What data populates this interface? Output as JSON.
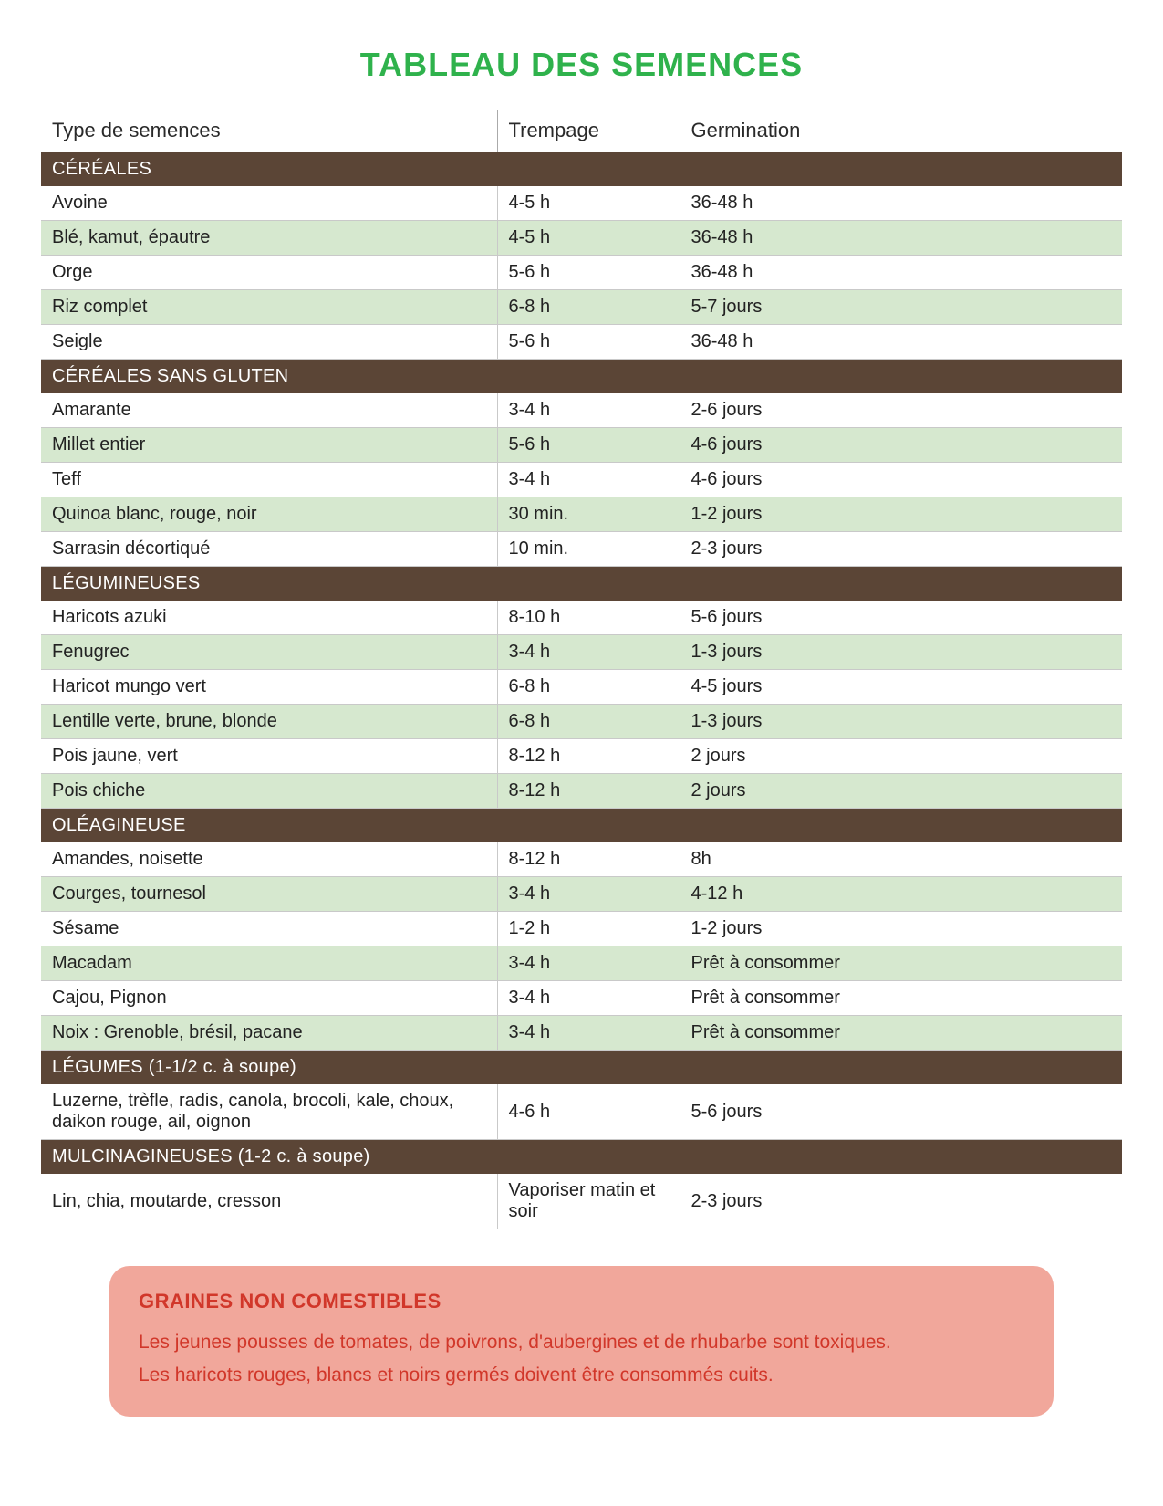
{
  "title": "TABLEAU DES SEMENCES",
  "colors": {
    "title_color": "#2fb24c",
    "section_bg": "#5b4536",
    "row_even_bg": "#d6e8cf",
    "row_odd_bg": "#ffffff",
    "warn_bg": "#f1a79b",
    "warn_text": "#d1372a"
  },
  "columns": {
    "c1": "Type de semences",
    "c2": "Trempage",
    "c3": "Germination"
  },
  "sections": [
    {
      "label": "CÉRÉALES",
      "rows": [
        {
          "name": "Avoine",
          "soak": "4-5 h",
          "germ": "36-48 h"
        },
        {
          "name": "Blé, kamut, épautre",
          "soak": "4-5 h",
          "germ": "36-48 h"
        },
        {
          "name": "Orge",
          "soak": "5-6 h",
          "germ": "36-48 h"
        },
        {
          "name": "Riz complet",
          "soak": "6-8 h",
          "germ": "5-7 jours"
        },
        {
          "name": "Seigle",
          "soak": "5-6 h",
          "germ": "36-48 h"
        }
      ]
    },
    {
      "label": "CÉRÉALES SANS GLUTEN",
      "rows": [
        {
          "name": "Amarante",
          "soak": "3-4 h",
          "germ": "2-6 jours"
        },
        {
          "name": "Millet entier",
          "soak": "5-6 h",
          "germ": "4-6 jours"
        },
        {
          "name": "Teff",
          "soak": "3-4 h",
          "germ": "4-6 jours"
        },
        {
          "name": "Quinoa blanc, rouge, noir",
          "soak": "30 min.",
          "germ": "1-2 jours"
        },
        {
          "name": "Sarrasin décortiqué",
          "soak": "10 min.",
          "germ": "2-3 jours"
        }
      ]
    },
    {
      "label": "LÉGUMINEUSES",
      "rows": [
        {
          "name": "Haricots azuki",
          "soak": "8-10 h",
          "germ": "5-6 jours"
        },
        {
          "name": "Fenugrec",
          "soak": "3-4 h",
          "germ": "1-3 jours"
        },
        {
          "name": "Haricot mungo vert",
          "soak": "6-8 h",
          "germ": "4-5 jours"
        },
        {
          "name": "Lentille verte, brune, blonde",
          "soak": "6-8 h",
          "germ": "1-3 jours"
        },
        {
          "name": "Pois jaune, vert",
          "soak": "8-12 h",
          "germ": "2 jours"
        },
        {
          "name": "Pois chiche",
          "soak": "8-12 h",
          "germ": "2 jours"
        }
      ]
    },
    {
      "label": "OLÉAGINEUSE",
      "rows": [
        {
          "name": "Amandes, noisette",
          "soak": "8-12 h",
          "germ": "8h"
        },
        {
          "name": "Courges, tournesol",
          "soak": "3-4 h",
          "germ": "4-12 h"
        },
        {
          "name": "Sésame",
          "soak": "1-2 h",
          "germ": "1-2 jours"
        },
        {
          "name": "Macadam",
          "soak": "3-4 h",
          "germ": "Prêt à consommer"
        },
        {
          "name": "Cajou, Pignon",
          "soak": "3-4 h",
          "germ": "Prêt à consommer"
        },
        {
          "name": "Noix : Grenoble, brésil, pacane",
          "soak": "3-4 h",
          "germ": "Prêt à consommer"
        }
      ]
    },
    {
      "label": "LÉGUMES (1-1/2 c. à soupe)",
      "rows": [
        {
          "name": "Luzerne, trèfle, radis, canola, brocoli, kale, choux, daikon rouge, ail, oignon",
          "soak": "4-6 h",
          "germ": "5-6 jours"
        }
      ]
    },
    {
      "label": "MULCINAGINEUSES (1-2 c. à soupe)",
      "rows": [
        {
          "name": "Lin, chia, moutarde, cresson",
          "soak": "Vaporiser matin et soir",
          "germ": "2-3 jours"
        }
      ]
    }
  ],
  "warning": {
    "title": "GRAINES NON COMESTIBLES",
    "lines": [
      "Les jeunes pousses de tomates, de poivrons, d'aubergines et de rhubarbe sont toxiques.",
      " Les haricots rouges, blancs et noirs germés doivent être consommés cuits."
    ]
  }
}
